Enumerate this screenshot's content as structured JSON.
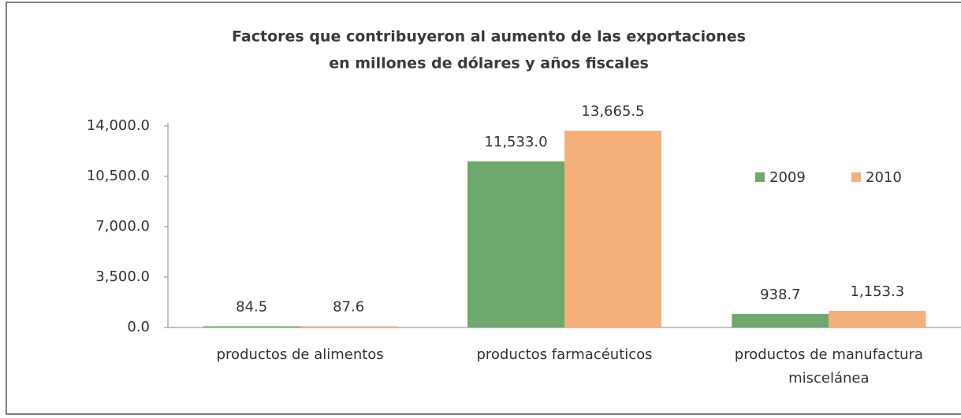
{
  "chart_data": {
    "type": "bar",
    "title": [
      "Factores que contribuyeron al aumento de las exportaciones",
      "en millones de dólares y años fiscales"
    ],
    "categories": [
      "productos de alimentos",
      "productos farmacéuticos",
      "productos de manufactura miscelánea"
    ],
    "series": [
      {
        "name": "2009",
        "color": "#6ea86c",
        "values": [
          84.5,
          11533.0,
          938.7
        ],
        "value_labels": [
          "84.5",
          "11,533.0",
          "938.7"
        ]
      },
      {
        "name": "2010",
        "color": "#f5b07a",
        "values": [
          87.6,
          13665.5,
          1153.3
        ],
        "value_labels": [
          "87.6",
          "13,665.5",
          "1,153.3"
        ]
      }
    ],
    "ylim": [
      0,
      14000
    ],
    "yticks": [
      {
        "value": 0,
        "label": "0.0"
      },
      {
        "value": 3500,
        "label": "3,500.0"
      },
      {
        "value": 7000,
        "label": "7,000.0"
      },
      {
        "value": 10500,
        "label": "10,500.0"
      },
      {
        "value": 14000,
        "label": "14,000.0"
      }
    ],
    "legend": "right"
  }
}
